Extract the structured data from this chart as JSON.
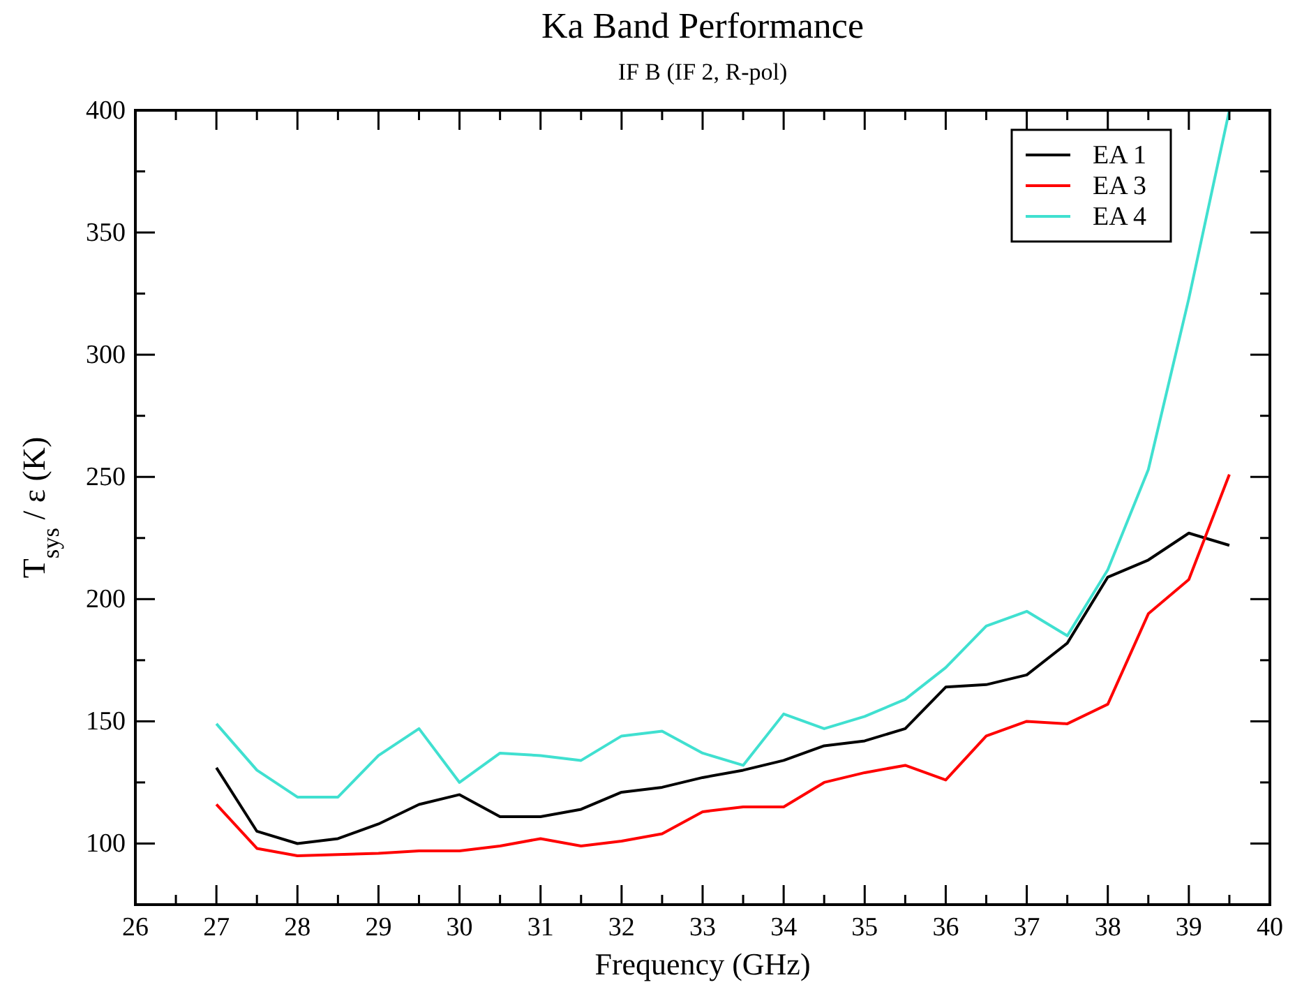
{
  "chart_data": {
    "type": "line",
    "title": "Ka Band Performance",
    "subtitle": "IF B  (IF 2, R-pol)",
    "xlabel": "Frequency (GHz)",
    "ylabel": "T$_{sys}$ / ε (K)",
    "x": [
      27,
      27.5,
      28,
      28.5,
      29,
      29.5,
      30,
      30.5,
      31,
      31.5,
      32,
      32.5,
      33,
      33.5,
      34,
      34.5,
      35,
      35.5,
      36,
      36.5,
      37,
      37.5,
      38,
      38.5,
      39,
      39.5
    ],
    "series": [
      {
        "name": "EA 1",
        "color": "#000000",
        "values": [
          131,
          105,
          100,
          102,
          108,
          116,
          120,
          111,
          111,
          114,
          121,
          123,
          127,
          130,
          134,
          140,
          142,
          147,
          164,
          165,
          169,
          182,
          209,
          216,
          227,
          222
        ]
      },
      {
        "name": "EA 3",
        "color": "#ff0000",
        "values": [
          116,
          98,
          95,
          95.5,
          96,
          97,
          97,
          99,
          102,
          99,
          101,
          104,
          113,
          115,
          115,
          125,
          129,
          132,
          126,
          144,
          150,
          149,
          157,
          194,
          208,
          251
        ]
      },
      {
        "name": "EA 4",
        "color": "#40e0d0",
        "values": [
          149,
          130,
          119,
          119,
          136,
          147,
          125,
          137,
          136,
          134,
          144,
          146,
          137,
          132,
          153,
          147,
          152,
          159,
          172,
          189,
          195,
          185,
          212,
          253,
          323,
          400
        ]
      }
    ],
    "xlim": [
      26,
      40
    ],
    "ylim": [
      75,
      400
    ],
    "xticks": [
      26,
      {
        "value": 26.5,
        "label": null
      },
      27,
      {
        "value": 27.5,
        "label": null
      },
      28,
      {
        "value": 28.5,
        "label": null
      },
      29,
      {
        "value": 29.5,
        "label": null
      },
      30,
      {
        "value": 30.5,
        "label": null
      },
      31,
      {
        "value": 31.5,
        "label": null
      },
      32,
      {
        "value": 32.5,
        "label": null
      },
      33,
      {
        "value": 33.5,
        "label": null
      },
      34,
      {
        "value": 34.5,
        "label": null
      },
      35,
      {
        "value": 35.5,
        "label": null
      },
      36,
      {
        "value": 36.5,
        "label": null
      },
      37,
      {
        "value": 37.5,
        "label": null
      },
      38,
      {
        "value": 38.5,
        "label": null
      },
      39,
      {
        "value": 39.5,
        "label": null
      },
      40
    ],
    "yticks": [
      {
        "value": 75,
        "label": null
      },
      100,
      {
        "value": 125,
        "label": null
      },
      150,
      {
        "value": 175,
        "label": null
      },
      200,
      {
        "value": 225,
        "label": null
      },
      250,
      {
        "value": 275,
        "label": null
      },
      300,
      {
        "value": 325,
        "label": null
      },
      350,
      {
        "value": 375,
        "label": null
      },
      400
    ],
    "legend": "top right",
    "grid": false,
    "marker": "none",
    "line_style": "solid"
  }
}
